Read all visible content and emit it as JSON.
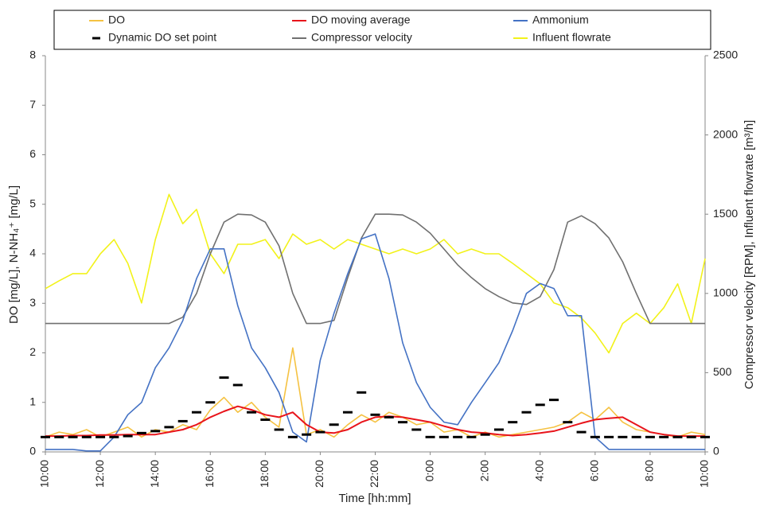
{
  "chart_data": {
    "type": "line",
    "x": [
      0,
      0.5,
      1,
      1.5,
      2,
      2.5,
      3,
      3.5,
      4,
      4.5,
      5,
      5.5,
      6,
      6.5,
      7,
      7.5,
      8,
      8.5,
      9,
      9.5,
      10,
      10.5,
      11,
      11.5,
      12,
      12.5,
      13,
      13.5,
      14,
      14.5,
      15,
      15.5,
      16,
      16.5,
      17,
      17.5,
      18,
      18.5,
      19,
      19.5,
      20,
      20.5,
      21,
      21.5,
      22,
      22.5,
      23,
      23.5,
      24
    ],
    "xlim": [
      0,
      24
    ],
    "xticks": [
      {
        "value": 0,
        "label": "10:00"
      },
      {
        "value": 2,
        "label": "12:00"
      },
      {
        "value": 4,
        "label": "14:00"
      },
      {
        "value": 6,
        "label": "16:00"
      },
      {
        "value": 8,
        "label": "18:00"
      },
      {
        "value": 10,
        "label": "20:00"
      },
      {
        "value": 12,
        "label": "22:00"
      },
      {
        "value": 14,
        "label": "0:00"
      },
      {
        "value": 16,
        "label": "2:00"
      },
      {
        "value": 18,
        "label": "4:00"
      },
      {
        "value": 20,
        "label": "6:00"
      },
      {
        "value": 22,
        "label": "8:00"
      },
      {
        "value": 24,
        "label": "10:00"
      }
    ],
    "ylim": [
      0,
      8
    ],
    "yticks": [
      0,
      1,
      2,
      3,
      4,
      5,
      6,
      7,
      8
    ],
    "y2lim": [
      0,
      2500
    ],
    "y2ticks": [
      0,
      500,
      1000,
      1500,
      2000,
      2500
    ],
    "x_label": "Time [hh:mm]",
    "y_label": "DO [mg/L], N-NH₄⁺ [mg/L]",
    "y2_label": "Compressor velocity [RPM], Influent flowrate [m³/h]",
    "grid": false,
    "series": [
      {
        "name": "DO",
        "color": "#f5c242",
        "values": [
          0.3,
          0.4,
          0.35,
          0.45,
          0.3,
          0.4,
          0.5,
          0.3,
          0.45,
          0.4,
          0.55,
          0.45,
          0.85,
          1.1,
          0.8,
          1.0,
          0.7,
          0.5,
          2.1,
          0.35,
          0.45,
          0.3,
          0.55,
          0.75,
          0.6,
          0.8,
          0.7,
          0.55,
          0.6,
          0.4,
          0.45,
          0.3,
          0.4,
          0.3,
          0.35,
          0.4,
          0.45,
          0.5,
          0.6,
          0.8,
          0.65,
          0.9,
          0.6,
          0.45,
          0.4,
          0.35,
          0.3,
          0.4,
          0.35
        ]
      },
      {
        "name": "DO moving average",
        "color": "#e8141b",
        "values": [
          0.32,
          0.32,
          0.33,
          0.33,
          0.34,
          0.34,
          0.35,
          0.35,
          0.35,
          0.4,
          0.45,
          0.55,
          0.7,
          0.82,
          0.92,
          0.85,
          0.75,
          0.7,
          0.8,
          0.55,
          0.4,
          0.38,
          0.45,
          0.6,
          0.7,
          0.72,
          0.7,
          0.65,
          0.6,
          0.52,
          0.45,
          0.4,
          0.38,
          0.35,
          0.33,
          0.35,
          0.38,
          0.42,
          0.5,
          0.58,
          0.65,
          0.68,
          0.7,
          0.55,
          0.4,
          0.35,
          0.32,
          0.32,
          0.32
        ]
      },
      {
        "name": "Ammonium",
        "color": "#4472c4",
        "values": [
          0.05,
          0.05,
          0.05,
          0.02,
          0.02,
          0.3,
          0.75,
          1.0,
          1.7,
          2.1,
          2.65,
          3.5,
          4.1,
          4.1,
          2.95,
          2.1,
          1.7,
          1.2,
          0.4,
          0.2,
          1.85,
          2.8,
          3.6,
          4.3,
          4.4,
          3.5,
          2.2,
          1.4,
          0.9,
          0.6,
          0.55,
          1.0,
          1.4,
          1.8,
          2.45,
          3.2,
          3.4,
          3.3,
          2.75,
          2.75,
          0.3,
          0.05,
          0.05,
          0.05,
          0.05,
          0.05,
          0.05,
          0.05,
          0.05
        ]
      },
      {
        "name": "Dynamic DO set point",
        "color": "#000000",
        "marker": "dash",
        "values": [
          0.3,
          0.3,
          0.3,
          0.3,
          0.3,
          0.3,
          0.32,
          0.38,
          0.42,
          0.5,
          0.62,
          0.8,
          1.0,
          1.5,
          1.35,
          0.8,
          0.65,
          0.45,
          0.3,
          0.35,
          0.4,
          0.55,
          0.8,
          1.2,
          0.75,
          0.7,
          0.6,
          0.45,
          0.3,
          0.3,
          0.3,
          0.3,
          0.35,
          0.45,
          0.6,
          0.8,
          0.95,
          1.05,
          0.6,
          0.4,
          0.3,
          0.3,
          0.3,
          0.3,
          0.3,
          0.3,
          0.3,
          0.3,
          0.3
        ]
      },
      {
        "name": "Compressor velocity",
        "color": "#707070",
        "axis": "y2",
        "values": [
          810,
          810,
          810,
          810,
          810,
          810,
          810,
          810,
          810,
          810,
          850,
          1000,
          1250,
          1450,
          1500,
          1495,
          1450,
          1300,
          1000,
          810,
          810,
          830,
          1100,
          1350,
          1500,
          1500,
          1495,
          1450,
          1380,
          1280,
          1180,
          1100,
          1030,
          980,
          940,
          930,
          980,
          1150,
          1450,
          1490,
          1440,
          1350,
          1200,
          1000,
          810,
          810,
          810,
          810,
          810
        ]
      },
      {
        "name": "Influent flowrate",
        "color": "#f2f21a",
        "axis": "y2",
        "values": [
          1030,
          1080,
          1125,
          1125,
          1250,
          1340,
          1190,
          940,
          1340,
          1625,
          1440,
          1530,
          1250,
          1125,
          1310,
          1310,
          1340,
          1220,
          1375,
          1310,
          1340,
          1280,
          1340,
          1310,
          1280,
          1250,
          1280,
          1250,
          1280,
          1340,
          1250,
          1280,
          1250,
          1250,
          1190,
          1125,
          1060,
          940,
          910,
          845,
          750,
          625,
          810,
          875,
          810,
          910,
          1060,
          810,
          1220
        ]
      }
    ]
  }
}
